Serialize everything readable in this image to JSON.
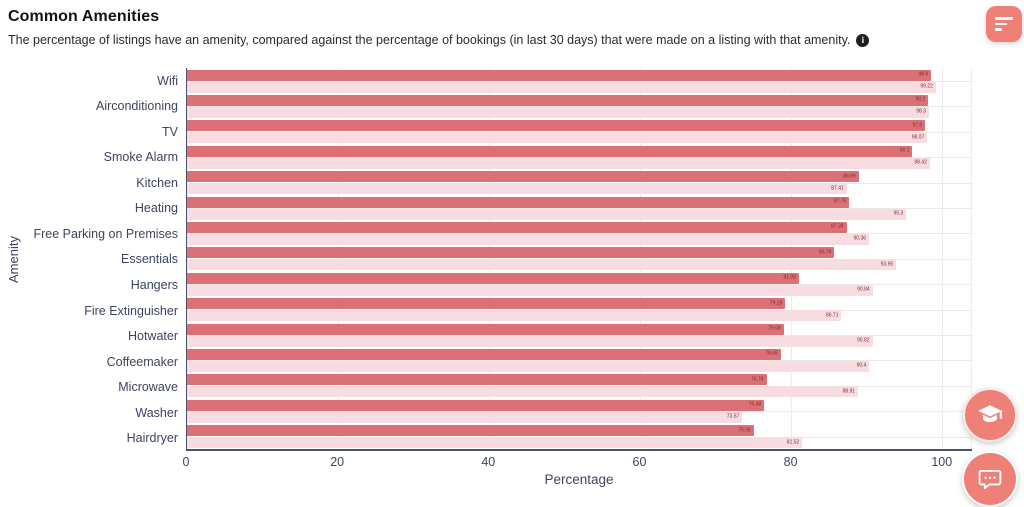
{
  "header": {
    "title": "Common Amenities",
    "subtitle": "The percentage of listings have an amenity, compared against the percentage of bookings (in last 30 days) that were made on a listing with that amenity.",
    "info_icon_glyph": "i"
  },
  "icons": {
    "report": "filter-lines-icon",
    "info": "info-icon",
    "education": "graduation-cap-icon",
    "chat": "chat-bubble-icon"
  },
  "colors": {
    "bar_dark": "#db7177",
    "bar_light": "#f7dde1",
    "accent_coral": "#ee8078",
    "axis_text": "#3d4461",
    "value_label": "#802b33",
    "grid": "#ececec",
    "axis_line": "#4b5166"
  },
  "chart_data": {
    "type": "bar",
    "orientation": "horizontal",
    "title": "Common Amenities",
    "categories": [
      "Wifi",
      "Airconditioning",
      "TV",
      "Smoke Alarm",
      "Kitchen",
      "Heating",
      "Free Parking on Premises",
      "Essentials",
      "Hangers",
      "Fire Extinguisher",
      "Hotwater",
      "Coffeemaker",
      "Microwave",
      "Washer",
      "Hairdryer"
    ],
    "series": [
      {
        "name": "Listings",
        "color": "#db7177",
        "values": [
          98.6,
          98.2,
          97.8,
          96.1,
          88.99,
          87.76,
          87.38,
          85.78,
          81.08,
          79.28,
          79.08,
          78.68,
          76.78,
          76.48,
          75.08
        ],
        "labels": [
          "98.6",
          "98.2",
          "97.8",
          "96.1",
          "88.99",
          "87.76",
          "87.38",
          "85.78",
          "81.08",
          "79.28",
          "79.08",
          "78.68",
          "76.78",
          "76.48",
          "75.08"
        ]
      },
      {
        "name": "Bookings",
        "color": "#f7dde1",
        "values": [
          99.22,
          98.3,
          98.07,
          98.42,
          87.41,
          95.3,
          90.36,
          93.95,
          90.84,
          86.71,
          90.82,
          90.4,
          88.91,
          73.57,
          81.52
        ],
        "labels": [
          "99.22",
          "98.3",
          "98.07",
          "98.42",
          "87.41",
          "95.3",
          "90.36",
          "93.95",
          "90.84",
          "86.71",
          "90.82",
          "90.4",
          "88.91",
          "73.57",
          "81.52"
        ]
      }
    ],
    "xlabel": "Percentage",
    "ylabel": "Amenity",
    "x_ticks": [
      "0",
      "20",
      "40",
      "60",
      "80",
      "100"
    ],
    "xlim": [
      0,
      104
    ],
    "grid": true,
    "legend": false
  }
}
